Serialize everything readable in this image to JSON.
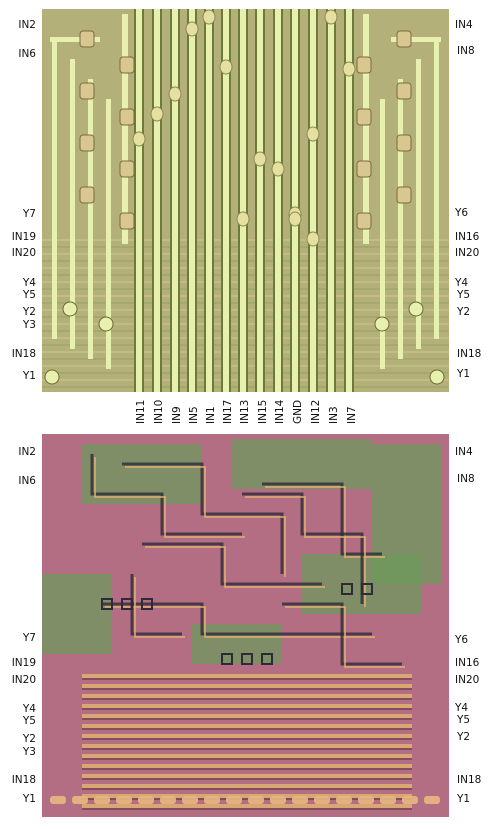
{
  "top_panel": {
    "left_labels": [
      "IN2",
      "IN6",
      "Y7",
      "IN19",
      "IN20",
      "Y4",
      "Y5",
      "Y2",
      "Y3",
      "IN18",
      "Y1"
    ],
    "right_labels": [
      "IN4",
      "IN8",
      "Y6",
      "IN16",
      "IN20",
      "Y4",
      "Y5",
      "Y2",
      "IN18",
      "Y1"
    ]
  },
  "bottom_labels": [
    "IN11",
    "IN10",
    "IN9",
    "IN5",
    "IN1",
    "IN17",
    "IN13",
    "IN15",
    "IN14",
    "GND",
    "IN12",
    "IN3",
    "IN7"
  ],
  "bottom_panel": {
    "left_labels": [
      "IN2",
      "IN6",
      "Y7",
      "IN19",
      "IN20",
      "Y4",
      "Y5",
      "Y2",
      "Y3",
      "IN18",
      "Y1"
    ],
    "right_labels": [
      "IN4",
      "IN8",
      "Y6",
      "IN16",
      "IN20",
      "Y4",
      "Y5",
      "Y2",
      "IN18",
      "Y1"
    ]
  },
  "colors": {
    "top_substrate": "#b4b07a",
    "top_metal": "#e8f0b0",
    "bottom_substrate": "#b46e84",
    "bottom_green": "#6e9a5c",
    "bottom_metal": "#e0b070"
  }
}
